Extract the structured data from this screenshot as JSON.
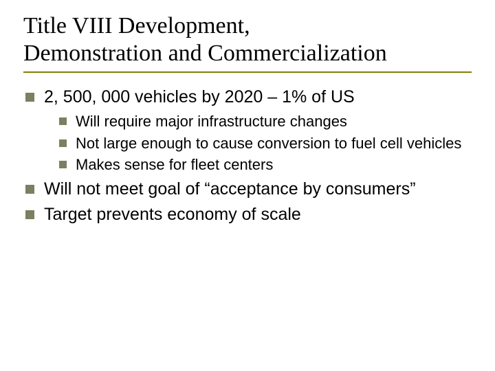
{
  "colors": {
    "background": "#ffffff",
    "text": "#000000",
    "bullet": "#7a8060",
    "rule": "#808000"
  },
  "typography": {
    "title_font_family": "Times New Roman",
    "title_font_size_pt": 34,
    "body_font_family": "Arial",
    "level1_font_size_pt": 25,
    "level2_font_size_pt": 22
  },
  "title": {
    "line1": "Title VIII  Development,",
    "line2": "Demonstration and Commercialization"
  },
  "bullets": [
    {
      "text": "2, 500, 000 vehicles by 2020 – 1% of US",
      "children": [
        {
          "text": "Will require major infrastructure changes"
        },
        {
          "text": "Not large enough to cause conversion to fuel cell vehicles"
        },
        {
          "text": "Makes sense for fleet centers"
        }
      ]
    },
    {
      "text": "Will not meet goal of “acceptance by consumers”",
      "children": []
    },
    {
      "text": "Target prevents economy of scale",
      "children": []
    }
  ]
}
